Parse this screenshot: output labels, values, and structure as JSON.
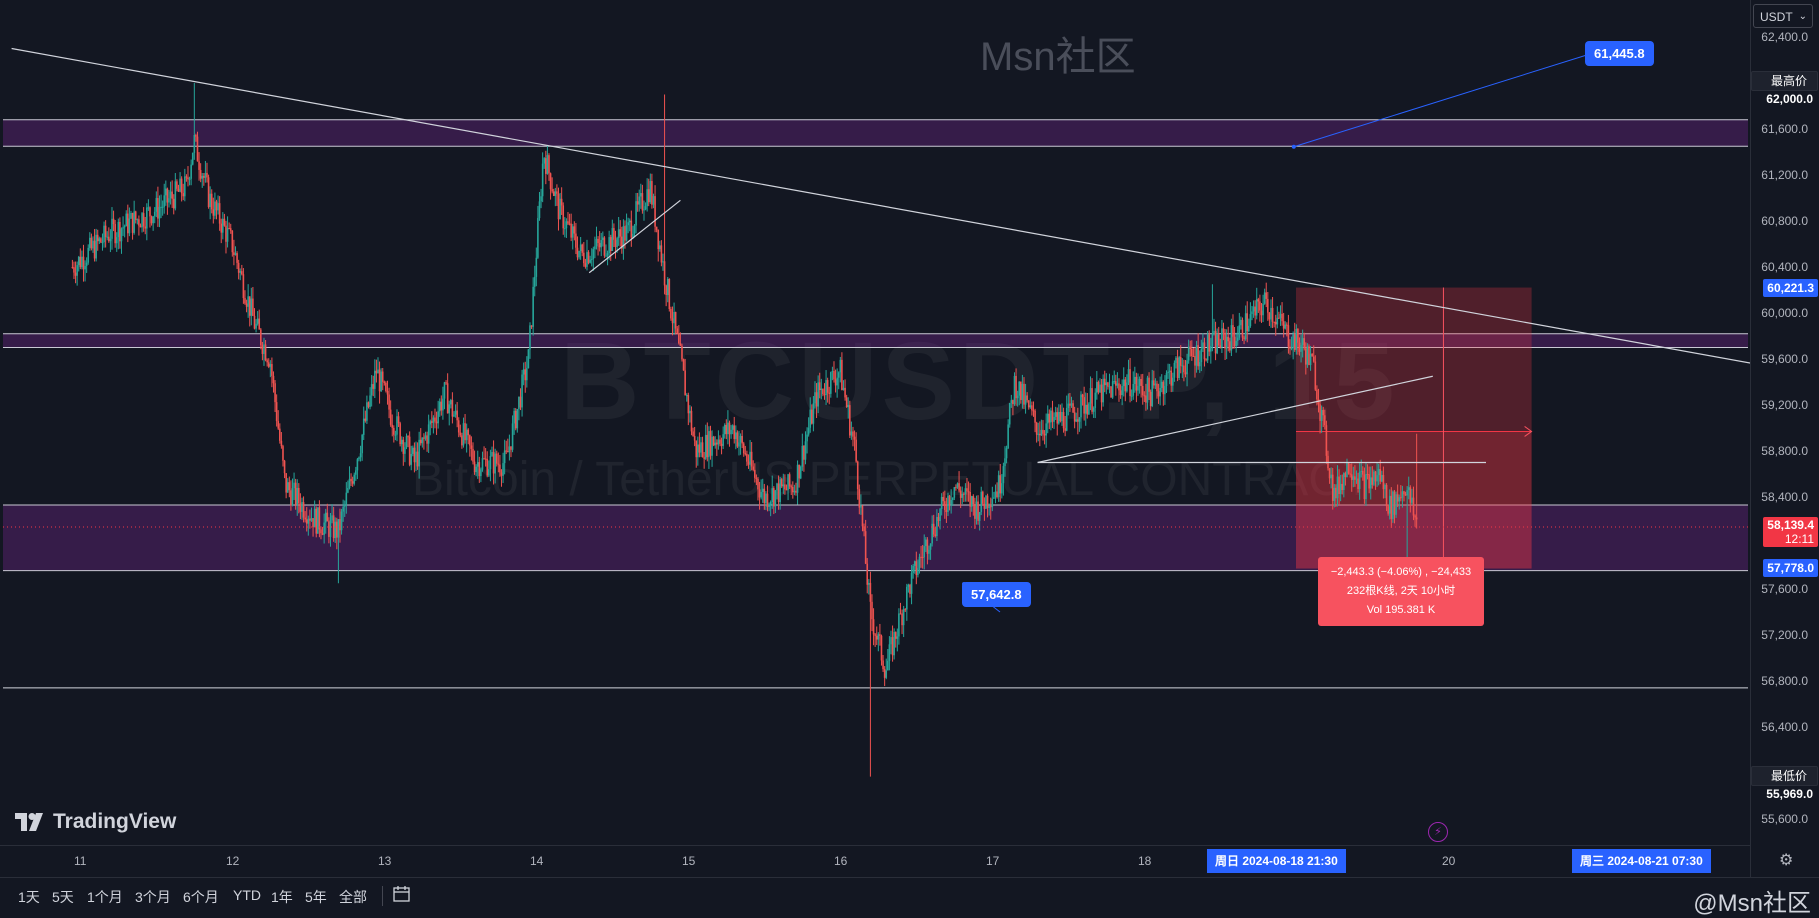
{
  "watermark": {
    "brand": "Msn社区",
    "symbol": "BTCUSDT.P, 15",
    "description": "Bitcoin / TetherUS PERPETUAL CONTRACT"
  },
  "currency": "USDT",
  "logo_text": "TradingView",
  "bottom_brand": "@Msn社区",
  "toolbar": {
    "ranges": [
      "1天",
      "5天",
      "1个月",
      "3个月",
      "6个月",
      "YTD",
      "1年",
      "5年",
      "全部"
    ]
  },
  "time_axis": {
    "ticks": [
      "11",
      "12",
      "13",
      "14",
      "15",
      "16",
      "17",
      "18",
      "20"
    ],
    "cursor_label": "周日 2024-08-18   21:30",
    "range_end_label": "周三 2024-08-21   07:30"
  },
  "price_axis": {
    "ticks": [
      "62,400.0",
      "61,600.0",
      "61,200.0",
      "60,800.0",
      "60,400.0",
      "60,000.0",
      "59,600.0",
      "59,200.0",
      "58,800.0",
      "58,400.0",
      "57,600.0",
      "57,200.0",
      "56,800.0",
      "56,400.0",
      "55,600.0"
    ],
    "high_label": "最高价",
    "high_value": "62,000.0",
    "low_label": "最低价",
    "low_value": "55,969.0",
    "marker_top": "60,221.3",
    "current_price": "58,139.4",
    "countdown": "12:11",
    "marker_bottom": "57,778.0"
  },
  "annotations": {
    "callout_high": "61,445.8",
    "callout_low": "57,642.8",
    "measure_line1": "−2,443.3 (−4.06%) , −24,433",
    "measure_line2": "232根K线, 2天 10小时",
    "measure_line3": "Vol 195.381 K"
  },
  "colors": {
    "background": "#131722",
    "up": "#26a69a",
    "down": "#ef5350",
    "zone": "#4a1f5c",
    "accent": "#2962ff",
    "measure": "#f7525f"
  },
  "chart_data": {
    "type": "candlestick",
    "symbol": "BTCUSDT.P",
    "timeframe": "15",
    "x_ticks": [
      "11",
      "12",
      "13",
      "14",
      "15",
      "16",
      "17",
      "18",
      "20"
    ],
    "y_range": [
      55400,
      62600
    ],
    "overall_high": 62000.0,
    "overall_low": 55969.0,
    "last_price": 58139.4,
    "anchors": [
      {
        "day": 10.95,
        "price": 60400
      },
      {
        "day": 11.2,
        "price": 60700
      },
      {
        "day": 11.5,
        "price": 60900
      },
      {
        "day": 11.7,
        "price": 61100
      },
      {
        "day": 11.75,
        "price": 61500
      },
      {
        "day": 11.85,
        "price": 61000
      },
      {
        "day": 12.0,
        "price": 60600
      },
      {
        "day": 12.15,
        "price": 59900
      },
      {
        "day": 12.25,
        "price": 59600
      },
      {
        "day": 12.35,
        "price": 58500
      },
      {
        "day": 12.55,
        "price": 58200
      },
      {
        "day": 12.7,
        "price": 58100
      },
      {
        "day": 12.85,
        "price": 58900
      },
      {
        "day": 12.95,
        "price": 59500
      },
      {
        "day": 13.05,
        "price": 59100
      },
      {
        "day": 13.2,
        "price": 58700
      },
      {
        "day": 13.4,
        "price": 59300
      },
      {
        "day": 13.6,
        "price": 58700
      },
      {
        "day": 13.8,
        "price": 58700
      },
      {
        "day": 13.95,
        "price": 59600
      },
      {
        "day": 14.05,
        "price": 61400
      },
      {
        "day": 14.15,
        "price": 60900
      },
      {
        "day": 14.3,
        "price": 60500
      },
      {
        "day": 14.45,
        "price": 60600
      },
      {
        "day": 14.6,
        "price": 60700
      },
      {
        "day": 14.75,
        "price": 61100
      },
      {
        "day": 14.85,
        "price": 60300
      },
      {
        "day": 14.95,
        "price": 59600
      },
      {
        "day": 15.05,
        "price": 58800
      },
      {
        "day": 15.3,
        "price": 59000
      },
      {
        "day": 15.5,
        "price": 58400
      },
      {
        "day": 15.7,
        "price": 58500
      },
      {
        "day": 15.85,
        "price": 59300
      },
      {
        "day": 16.0,
        "price": 59500
      },
      {
        "day": 16.1,
        "price": 58800
      },
      {
        "day": 16.2,
        "price": 57400
      },
      {
        "day": 16.3,
        "price": 56900
      },
      {
        "day": 16.45,
        "price": 57600
      },
      {
        "day": 16.6,
        "price": 58100
      },
      {
        "day": 16.75,
        "price": 58500
      },
      {
        "day": 16.9,
        "price": 58300
      },
      {
        "day": 17.05,
        "price": 58500
      },
      {
        "day": 17.15,
        "price": 59400
      },
      {
        "day": 17.3,
        "price": 59000
      },
      {
        "day": 17.5,
        "price": 59100
      },
      {
        "day": 17.7,
        "price": 59300
      },
      {
        "day": 17.9,
        "price": 59400
      },
      {
        "day": 18.05,
        "price": 59300
      },
      {
        "day": 18.2,
        "price": 59500
      },
      {
        "day": 18.4,
        "price": 59700
      },
      {
        "day": 18.6,
        "price": 59800
      },
      {
        "day": 18.8,
        "price": 60100
      },
      {
        "day": 18.95,
        "price": 59800
      },
      {
        "day": 19.05,
        "price": 59700
      },
      {
        "day": 19.12,
        "price": 59500
      },
      {
        "day": 19.25,
        "price": 58400
      },
      {
        "day": 19.35,
        "price": 58700
      },
      {
        "day": 19.45,
        "price": 58500
      },
      {
        "day": 19.55,
        "price": 58600
      },
      {
        "day": 19.62,
        "price": 58300
      },
      {
        "day": 19.72,
        "price": 58500
      },
      {
        "day": 19.8,
        "price": 58140
      }
    ],
    "zones": [
      {
        "low": 61450,
        "high": 61680
      },
      {
        "low": 59700,
        "high": 59820
      },
      {
        "low": 57760,
        "high": 58330
      }
    ],
    "horizontal_lines": [
      56740
    ],
    "trendlines": [
      {
        "from": {
          "day": 10.55,
          "price": 62300
        },
        "to": {
          "day": 22.05,
          "price": 59550
        }
      },
      {
        "from": {
          "day": 14.35,
          "price": 60350
        },
        "to": {
          "day": 14.95,
          "price": 60980
        }
      },
      {
        "from": {
          "day": 17.3,
          "price": 58700
        },
        "to": {
          "day": 19.9,
          "price": 59450
        }
      },
      {
        "from": {
          "day": 17.3,
          "price": 58700
        },
        "to": {
          "day": 20.25,
          "price": 58700
        }
      }
    ],
    "callouts": [
      {
        "label": "61,445.8",
        "day": 19.9,
        "price": 61445.8
      },
      {
        "label": "57,642.8",
        "day": 16.85,
        "price": 57642.8
      }
    ],
    "short_position": {
      "entry": 58970,
      "stop": 60221.3,
      "target": 57778.0,
      "start_day": 19.0,
      "end_day": 20.55,
      "change": -2443.3,
      "change_pct": -4.06,
      "bars": 232,
      "duration": "2天 10小时",
      "volume": "195.381 K"
    }
  }
}
